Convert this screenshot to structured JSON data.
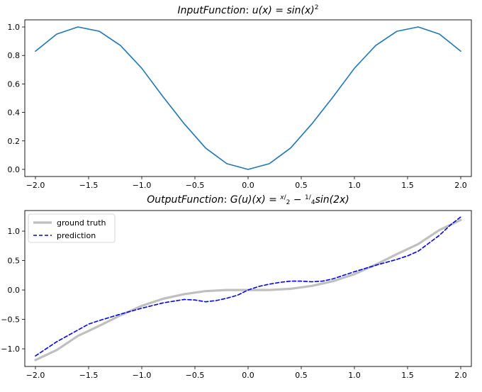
{
  "chart_data": [
    {
      "type": "line",
      "title": "InputFunction: u(x) = sin(x)^2",
      "title_parts": {
        "main": "InputFunction",
        "sep": ": ",
        "lhs": "u(x)",
        "eq": " = ",
        "rhs": "sin(x)",
        "sup": "2"
      },
      "xlabel": "",
      "ylabel": "",
      "xlim": [
        -2.1,
        2.1
      ],
      "ylim": [
        -0.05,
        1.05
      ],
      "xticks": [
        -2.0,
        -1.5,
        -1.0,
        -0.5,
        0.0,
        0.5,
        1.0,
        1.5,
        2.0
      ],
      "xtick_labels": [
        "−2.0",
        "−1.5",
        "−1.0",
        "−0.5",
        "0.0",
        "0.5",
        "1.0",
        "1.5",
        "2.0"
      ],
      "yticks": [
        0.0,
        0.2,
        0.4,
        0.6,
        0.8,
        1.0
      ],
      "ytick_labels": [
        "0.0",
        "0.2",
        "0.4",
        "0.6",
        "0.8",
        "1.0"
      ],
      "grid": false,
      "series": [
        {
          "color": "#1f77b4",
          "style": "solid",
          "x": [
            -2.0,
            -1.8,
            -1.6,
            -1.4,
            -1.2,
            -1.0,
            -0.8,
            -0.6,
            -0.4,
            -0.2,
            0.0,
            0.2,
            0.4,
            0.6,
            0.8,
            1.0,
            1.2,
            1.4,
            1.6,
            1.8,
            2.0
          ],
          "y": [
            0.83,
            0.95,
            1.0,
            0.97,
            0.87,
            0.71,
            0.51,
            0.32,
            0.15,
            0.04,
            0.0,
            0.04,
            0.15,
            0.32,
            0.51,
            0.71,
            0.87,
            0.97,
            1.0,
            0.95,
            0.83
          ]
        }
      ]
    },
    {
      "type": "line",
      "title": "OutputFunction: G(u)(x) = x/2 − 1/4 sin(2x)",
      "title_parts": {
        "main": "OutputFunction",
        "sep": ": ",
        "lhs": "G(u)(x)",
        "eq": " = ",
        "frac1_num": "x",
        "frac1_den": "2",
        "minus": " − ",
        "frac2_num": "1",
        "frac2_den": "4",
        "tail": "sin(2x)"
      },
      "xlabel": "",
      "ylabel": "",
      "xlim": [
        -2.1,
        2.1
      ],
      "ylim": [
        -1.3,
        1.35
      ],
      "xticks": [
        -2.0,
        -1.5,
        -1.0,
        -0.5,
        0.0,
        0.5,
        1.0,
        1.5,
        2.0
      ],
      "xtick_labels": [
        "−2.0",
        "−1.5",
        "−1.0",
        "−0.5",
        "0.0",
        "0.5",
        "1.0",
        "1.5",
        "2.0"
      ],
      "yticks": [
        -1.0,
        -0.5,
        0.0,
        0.5,
        1.0
      ],
      "ytick_labels": [
        "−1.0",
        "−0.5",
        "0.0",
        "0.5",
        "1.0"
      ],
      "grid": false,
      "legend": {
        "position": "top-left"
      },
      "series": [
        {
          "name": "ground truth",
          "color": "#bfbfbf",
          "style": "solid",
          "x": [
            -2.0,
            -1.8,
            -1.6,
            -1.4,
            -1.2,
            -1.0,
            -0.8,
            -0.6,
            -0.4,
            -0.2,
            0.0,
            0.2,
            0.4,
            0.6,
            0.8,
            1.0,
            1.2,
            1.4,
            1.6,
            1.8,
            2.0
          ],
          "y": [
            -1.19,
            -1.02,
            -0.78,
            -0.61,
            -0.43,
            -0.27,
            -0.15,
            -0.07,
            -0.02,
            0.0,
            0.0,
            0.0,
            0.02,
            0.07,
            0.15,
            0.27,
            0.43,
            0.61,
            0.78,
            1.02,
            1.19
          ]
        },
        {
          "name": "prediction",
          "color": "#0000ff",
          "style": "dashed",
          "x": [
            -2.0,
            -1.8,
            -1.6,
            -1.5,
            -1.4,
            -1.2,
            -1.0,
            -0.8,
            -0.6,
            -0.5,
            -0.4,
            -0.3,
            -0.2,
            -0.1,
            0.0,
            0.1,
            0.2,
            0.3,
            0.4,
            0.5,
            0.6,
            0.7,
            0.8,
            0.9,
            1.0,
            1.2,
            1.4,
            1.5,
            1.6,
            1.8,
            1.9,
            2.0
          ],
          "y": [
            -1.12,
            -0.88,
            -0.68,
            -0.58,
            -0.52,
            -0.41,
            -0.31,
            -0.22,
            -0.16,
            -0.17,
            -0.2,
            -0.18,
            -0.14,
            -0.09,
            0.0,
            0.06,
            0.1,
            0.13,
            0.15,
            0.15,
            0.14,
            0.15,
            0.19,
            0.25,
            0.31,
            0.42,
            0.52,
            0.58,
            0.66,
            0.93,
            1.1,
            1.24
          ]
        }
      ]
    }
  ]
}
